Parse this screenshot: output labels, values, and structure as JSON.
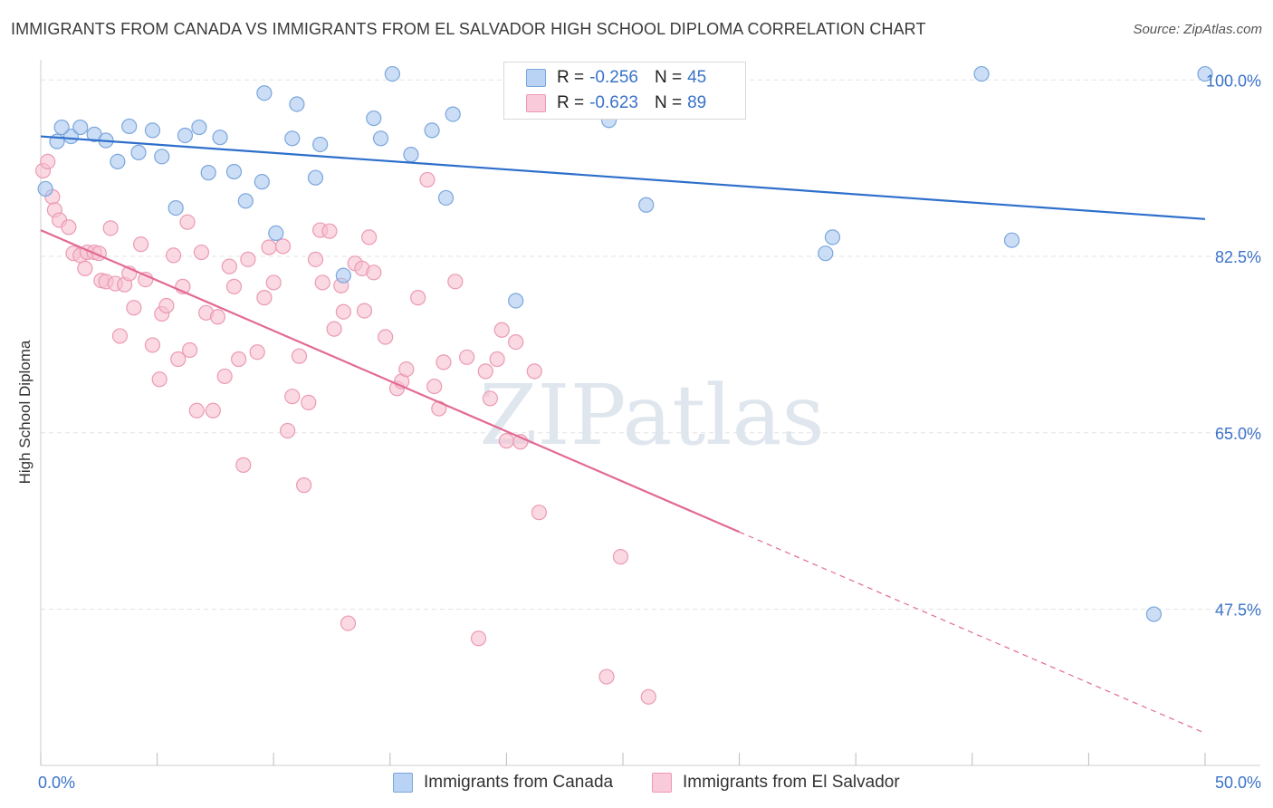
{
  "title": "IMMIGRANTS FROM CANADA VS IMMIGRANTS FROM EL SALVADOR HIGH SCHOOL DIPLOMA CORRELATION CHART",
  "source": "Source: ZipAtlas.com",
  "watermark": "ZIPatlas",
  "colors": {
    "canada_fill": "#a9c8ef",
    "canada_stroke": "#7aa6dd",
    "canada_line": "#2e6fcb",
    "elsalvador_fill": "#f6bfd0",
    "elsalvador_stroke": "#ec9ab3",
    "elsalvador_line": "#e36a93",
    "axis_label": "#3a72c9"
  },
  "legend": {
    "rows": [
      {
        "r_key": "R =",
        "r_val": "-0.256",
        "n_key": "N =",
        "n_val": "45"
      },
      {
        "r_key": "R =",
        "r_val": "-0.623",
        "n_key": "N =",
        "n_val": "89"
      }
    ]
  },
  "bottom_legend": [
    "Immigrants from Canada",
    "Immigrants from El Salvador"
  ],
  "chart_data": {
    "type": "scatter",
    "title": "IMMIGRANTS FROM CANADA VS IMMIGRANTS FROM EL SALVADOR HIGH SCHOOL DIPLOMA CORRELATION CHART",
    "xlabel": "",
    "ylabel": "High School Diploma",
    "xlim": [
      0,
      50
    ],
    "ylim": [
      32,
      102
    ],
    "x_tick_labels": [
      "0.0%",
      "50.0%"
    ],
    "y_ticks": [
      100,
      82.5,
      65,
      47.5
    ],
    "y_tick_labels": [
      "100.0%",
      "82.5%",
      "65.0%",
      "47.5%"
    ],
    "grid": "horizontal dashed",
    "legend_position": "top-center",
    "series": [
      {
        "name": "Immigrants from Canada",
        "r": -0.256,
        "n": 45,
        "trend": {
          "x": [
            0,
            50
          ],
          "y": [
            94.4,
            86.2
          ],
          "dashed_from": null
        },
        "points": [
          [
            0.2,
            89.2
          ],
          [
            0.7,
            93.9
          ],
          [
            1.3,
            94.4
          ],
          [
            1.7,
            95.3
          ],
          [
            2.3,
            94.6
          ],
          [
            2.8,
            94.0
          ],
          [
            3.3,
            91.9
          ],
          [
            3.8,
            95.4
          ],
          [
            4.2,
            92.8
          ],
          [
            4.8,
            95.0
          ],
          [
            5.2,
            92.4
          ],
          [
            5.8,
            87.3
          ],
          [
            6.2,
            94.5
          ],
          [
            6.8,
            95.3
          ],
          [
            7.2,
            90.8
          ],
          [
            7.7,
            94.3
          ],
          [
            8.3,
            90.9
          ],
          [
            8.8,
            88.0
          ],
          [
            9.6,
            98.7
          ],
          [
            9.5,
            89.9
          ],
          [
            10.1,
            84.8
          ],
          [
            10.8,
            94.2
          ],
          [
            11.0,
            97.6
          ],
          [
            11.8,
            90.3
          ],
          [
            12.0,
            93.6
          ],
          [
            13.0,
            80.6
          ],
          [
            14.3,
            96.2
          ],
          [
            14.6,
            94.2
          ],
          [
            15.1,
            100.6
          ],
          [
            15.9,
            92.6
          ],
          [
            16.8,
            95.0
          ],
          [
            17.4,
            88.3
          ],
          [
            17.7,
            96.6
          ],
          [
            20.4,
            78.1
          ],
          [
            24.4,
            96.0
          ],
          [
            26.0,
            87.6
          ],
          [
            28.0,
            100.6
          ],
          [
            29.3,
            100.6
          ],
          [
            33.7,
            82.8
          ],
          [
            34.0,
            84.4
          ],
          [
            40.4,
            100.6
          ],
          [
            41.7,
            84.1
          ],
          [
            47.8,
            47.0
          ],
          [
            50.0,
            100.6
          ],
          [
            0.9,
            95.3
          ]
        ]
      },
      {
        "name": "Immigrants from El Salvador",
        "r": -0.623,
        "n": 89,
        "trend": {
          "x": [
            0,
            50
          ],
          "y": [
            85.1,
            35.2
          ],
          "dashed_from": 30.0
        },
        "points": [
          [
            0.1,
            91.0
          ],
          [
            0.5,
            88.4
          ],
          [
            0.6,
            87.1
          ],
          [
            0.8,
            86.1
          ],
          [
            1.2,
            85.4
          ],
          [
            1.4,
            82.8
          ],
          [
            1.7,
            82.6
          ],
          [
            1.9,
            81.3
          ],
          [
            2.0,
            82.9
          ],
          [
            2.3,
            82.9
          ],
          [
            2.6,
            80.1
          ],
          [
            2.8,
            80.0
          ],
          [
            3.0,
            85.3
          ],
          [
            3.2,
            79.8
          ],
          [
            3.4,
            74.6
          ],
          [
            3.6,
            79.7
          ],
          [
            3.8,
            80.8
          ],
          [
            4.0,
            77.4
          ],
          [
            4.3,
            83.7
          ],
          [
            4.5,
            80.2
          ],
          [
            4.8,
            73.7
          ],
          [
            5.1,
            70.3
          ],
          [
            5.2,
            76.8
          ],
          [
            5.4,
            77.6
          ],
          [
            5.7,
            82.6
          ],
          [
            5.9,
            72.3
          ],
          [
            6.1,
            79.5
          ],
          [
            6.3,
            85.9
          ],
          [
            6.4,
            73.2
          ],
          [
            6.7,
            67.2
          ],
          [
            6.9,
            82.9
          ],
          [
            7.1,
            76.9
          ],
          [
            7.4,
            67.2
          ],
          [
            7.6,
            76.5
          ],
          [
            7.9,
            70.6
          ],
          [
            8.1,
            81.5
          ],
          [
            8.3,
            79.5
          ],
          [
            8.5,
            72.3
          ],
          [
            8.7,
            61.8
          ],
          [
            8.9,
            82.2
          ],
          [
            9.3,
            73.0
          ],
          [
            9.6,
            78.4
          ],
          [
            9.8,
            83.4
          ],
          [
            10.0,
            79.9
          ],
          [
            10.4,
            83.5
          ],
          [
            10.6,
            65.2
          ],
          [
            10.8,
            68.6
          ],
          [
            11.1,
            72.6
          ],
          [
            11.3,
            59.8
          ],
          [
            11.5,
            68.0
          ],
          [
            11.8,
            82.2
          ],
          [
            12.0,
            85.1
          ],
          [
            12.1,
            79.9
          ],
          [
            12.4,
            85.0
          ],
          [
            12.6,
            75.3
          ],
          [
            12.9,
            79.6
          ],
          [
            13.0,
            77.0
          ],
          [
            13.2,
            46.1
          ],
          [
            13.5,
            81.8
          ],
          [
            13.8,
            81.3
          ],
          [
            13.9,
            77.1
          ],
          [
            14.1,
            84.4
          ],
          [
            14.3,
            80.9
          ],
          [
            14.8,
            74.5
          ],
          [
            15.3,
            69.4
          ],
          [
            15.5,
            70.1
          ],
          [
            15.7,
            71.3
          ],
          [
            16.2,
            78.4
          ],
          [
            16.6,
            90.1
          ],
          [
            16.9,
            69.6
          ],
          [
            17.1,
            67.4
          ],
          [
            17.3,
            72.0
          ],
          [
            17.8,
            80.0
          ],
          [
            18.3,
            72.5
          ],
          [
            18.8,
            44.6
          ],
          [
            19.1,
            71.1
          ],
          [
            19.3,
            68.4
          ],
          [
            19.6,
            72.3
          ],
          [
            19.8,
            75.2
          ],
          [
            20.0,
            64.2
          ],
          [
            20.4,
            74.0
          ],
          [
            20.6,
            64.1
          ],
          [
            21.2,
            71.1
          ],
          [
            21.4,
            57.1
          ],
          [
            24.3,
            40.8
          ],
          [
            24.9,
            52.7
          ],
          [
            26.1,
            38.8
          ],
          [
            0.3,
            91.9
          ],
          [
            2.5,
            82.8
          ]
        ]
      }
    ]
  }
}
